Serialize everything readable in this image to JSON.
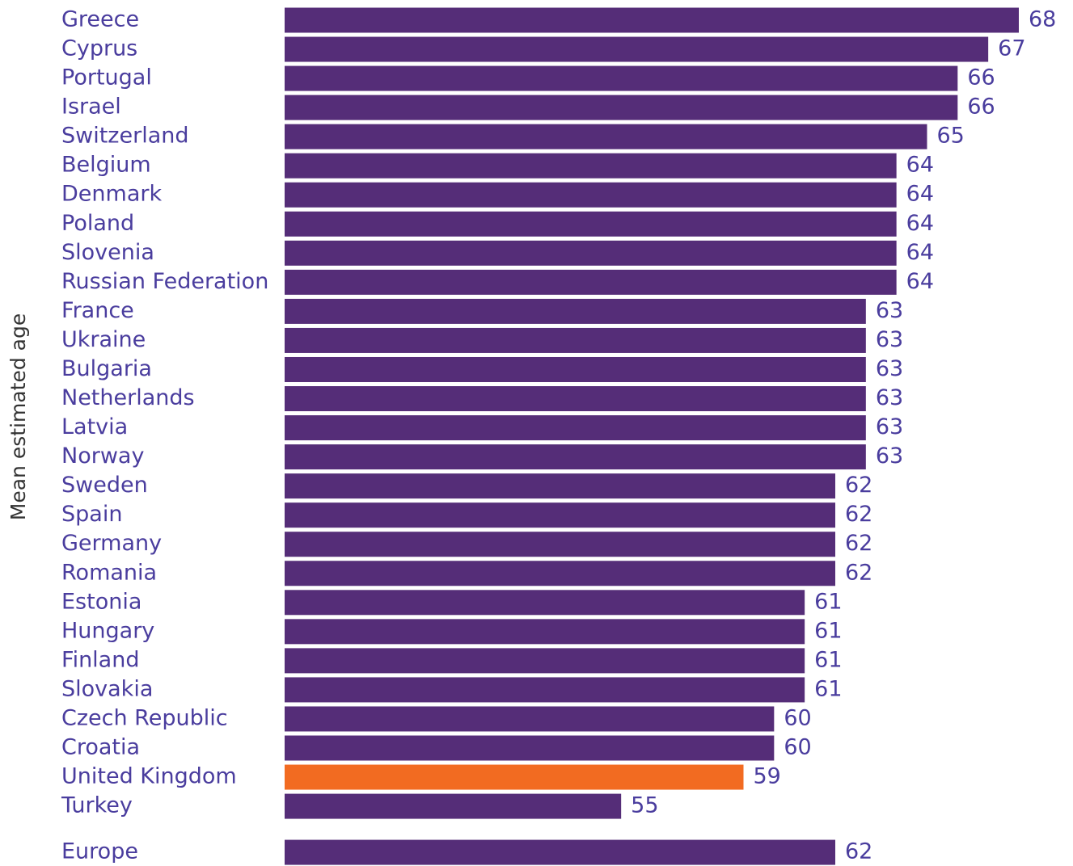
{
  "chart_data": {
    "type": "barh",
    "y_axis_label": "Mean estimated age",
    "categories": [
      "Greece",
      "Cyprus",
      "Portugal",
      "Israel",
      "Switzerland",
      "Belgium",
      "Denmark",
      "Poland",
      "Slovenia",
      "Russian Federation",
      "France",
      "Ukraine",
      "Bulgaria",
      "Netherlands",
      "Latvia",
      "Norway",
      "Sweden",
      "Spain",
      "Germany",
      "Romania",
      "Estonia",
      "Hungary",
      "Finland",
      "Slovakia",
      "Czech Republic",
      "Croatia",
      "United Kingdom",
      "Turkey"
    ],
    "values": [
      68,
      67,
      66,
      66,
      65,
      64,
      64,
      64,
      64,
      64,
      63,
      63,
      63,
      63,
      63,
      63,
      62,
      62,
      62,
      62,
      61,
      61,
      61,
      61,
      60,
      60,
      59,
      55
    ],
    "colors": [
      "#552d78",
      "#552d78",
      "#552d78",
      "#552d78",
      "#552d78",
      "#552d78",
      "#552d78",
      "#552d78",
      "#552d78",
      "#552d78",
      "#552d78",
      "#552d78",
      "#552d78",
      "#552d78",
      "#552d78",
      "#552d78",
      "#552d78",
      "#552d78",
      "#552d78",
      "#552d78",
      "#552d78",
      "#552d78",
      "#552d78",
      "#552d78",
      "#552d78",
      "#552d78",
      "#f26b21",
      "#552d78"
    ],
    "total": {
      "category": "Europe",
      "value": 62,
      "color": "#552d78"
    },
    "xlim": [
      44,
      68
    ]
  }
}
